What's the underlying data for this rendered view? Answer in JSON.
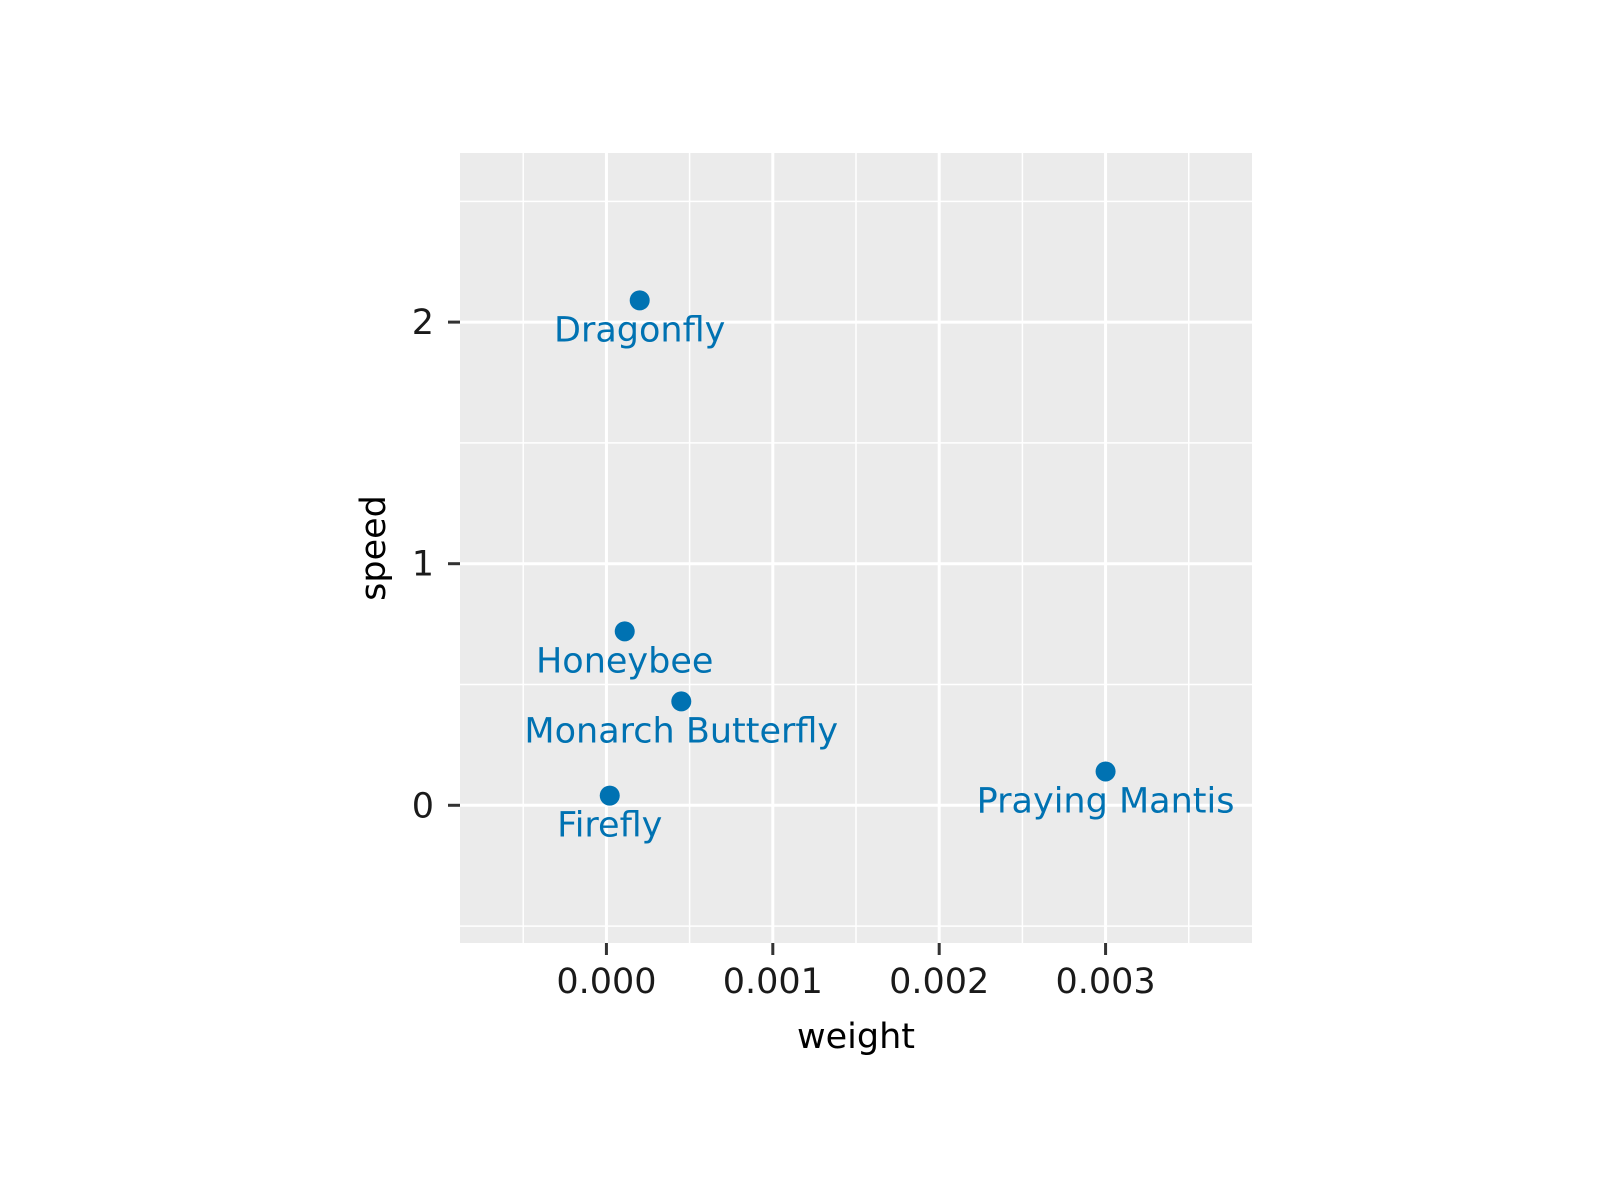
{
  "chart_data": {
    "type": "scatter",
    "xlabel": "weight",
    "ylabel": "speed",
    "xlim": [
      -0.00088,
      0.00388
    ],
    "ylim": [
      -0.57,
      2.7
    ],
    "x_ticks": [
      0.0,
      0.001,
      0.002,
      0.003
    ],
    "x_tick_labels": [
      "0.000",
      "0.001",
      "0.002",
      "0.003"
    ],
    "y_ticks": [
      0,
      1,
      2
    ],
    "y_tick_labels": [
      "0",
      "1",
      "2"
    ],
    "x_minor_ticks": [
      -0.0005,
      0.0005,
      0.0015,
      0.0025,
      0.0035
    ],
    "y_minor_ticks": [
      -0.5,
      0.5,
      1.5,
      2.5
    ],
    "grid": true,
    "legend": "none",
    "colors": {
      "panel": "#ebebeb",
      "grid": "#ffffff",
      "point": "#0072b2",
      "label": "#0072b2"
    },
    "points": [
      {
        "label": "Dragonfly",
        "x": 0.0002,
        "y": 2.09
      },
      {
        "label": "Honeybee",
        "x": 0.00011,
        "y": 0.72
      },
      {
        "label": "Monarch Butterfly",
        "x": 0.00045,
        "y": 0.43
      },
      {
        "label": "Firefly",
        "x": 2e-05,
        "y": 0.04
      },
      {
        "label": "Praying Mantis",
        "x": 0.003,
        "y": 0.14
      }
    ]
  }
}
